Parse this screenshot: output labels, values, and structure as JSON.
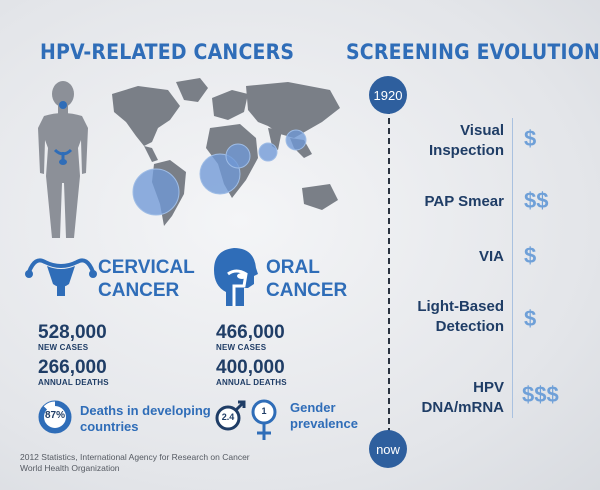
{
  "left": {
    "title": "HPV-RELATED CANCERS",
    "cervical": {
      "title_line1": "CERVICAL",
      "title_line2": "CANCER",
      "new_cases": "528,000",
      "new_cases_label": "NEW CASES",
      "deaths": "266,000",
      "deaths_label": "ANNUAL DEATHS",
      "percent": "87%",
      "percent_fill": 0.87,
      "stat_line1": "Deaths in developing",
      "stat_line2": "countries"
    },
    "oral": {
      "title_line1": "ORAL",
      "title_line2": "CANCER",
      "new_cases": "466,000",
      "new_cases_label": "NEW CASES",
      "deaths": "400,000",
      "deaths_label": "ANNUAL DEATHS",
      "male_ratio": "2.4",
      "female_ratio": "1",
      "stat_line1": "Gender",
      "stat_line2": "prevalence"
    },
    "source_line1": "2012 Statistics, International Agency for Research on Cancer",
    "source_line2": "World Health Organization"
  },
  "right": {
    "title": "SCREENING EVOLUTION",
    "start": "1920",
    "end": "now",
    "methods": [
      {
        "line1": "Visual",
        "line2": "Inspection",
        "cost": "$"
      },
      {
        "line1": "PAP Smear",
        "line2": "",
        "cost": "$$"
      },
      {
        "line1": "VIA",
        "line2": "",
        "cost": "$"
      },
      {
        "line1": "Light-Based",
        "line2": "Detection",
        "cost": "$"
      },
      {
        "line1": "HPV",
        "line2": "DNA/mRNA",
        "cost": "$$$"
      }
    ]
  },
  "colors": {
    "accent": "#2f6db8",
    "dark": "#1f3d66",
    "land": "#7a7f87",
    "bubble": "#6f98d6"
  },
  "icons": [
    "female-body-icon",
    "world-map-icon",
    "uterus-icon",
    "head-throat-icon",
    "pie-icon",
    "male-symbol-icon",
    "female-symbol-icon"
  ]
}
